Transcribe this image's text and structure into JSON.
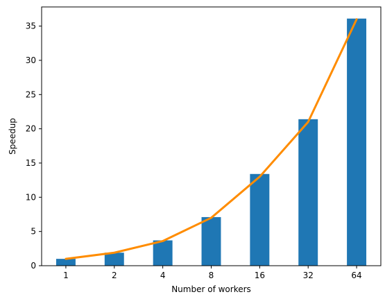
{
  "chart_data": {
    "type": "bar",
    "categories": [
      "1",
      "2",
      "4",
      "8",
      "16",
      "32",
      "64"
    ],
    "series": [
      {
        "type": "bar",
        "values": [
          1.0,
          1.9,
          3.7,
          7.1,
          13.4,
          21.4,
          36.1
        ],
        "color": "#1f77b4"
      },
      {
        "type": "line",
        "values": [
          1.0,
          1.9,
          3.6,
          7.0,
          13.0,
          21.0,
          36.0
        ],
        "color": "#ff8c00"
      }
    ],
    "title": "",
    "xlabel": "Number of workers",
    "ylabel": "Speedup",
    "ylim": [
      0,
      37.8
    ],
    "yticks": [
      0,
      5,
      10,
      15,
      20,
      25,
      30,
      35
    ],
    "grid": false,
    "legend": "none"
  }
}
